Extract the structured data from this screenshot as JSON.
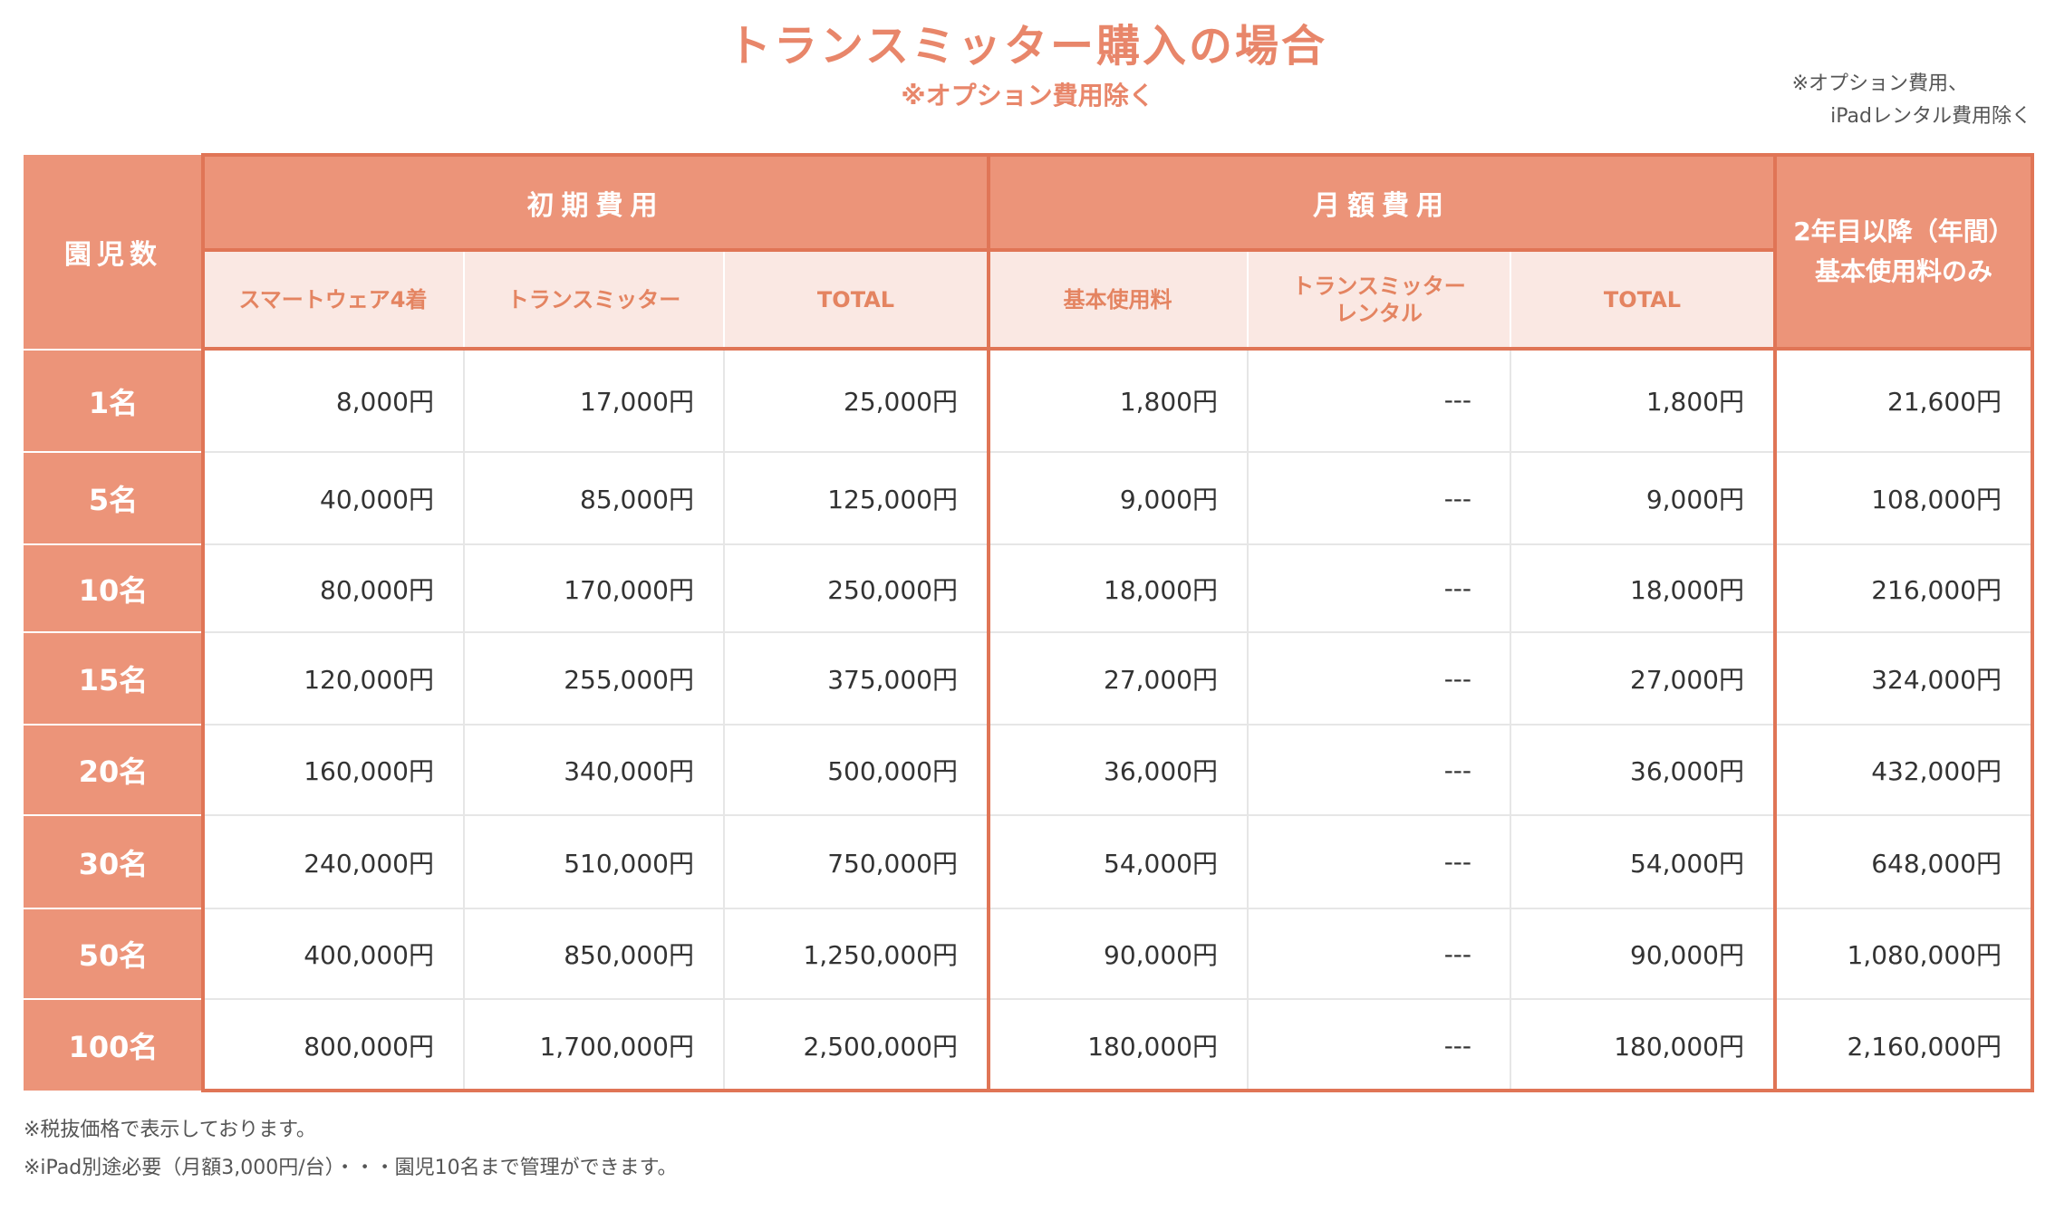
{
  "header": {
    "title": "トランスミッター購入の場合",
    "subtitle": "※オプション費用除く",
    "note": [
      "※オプション費用、",
      "iPadレンタル費用除く"
    ]
  },
  "table": {
    "corner": "園児数",
    "groups": [
      "初期費用",
      "月額費用",
      "2年目以降（年間）基本使用料のみ"
    ],
    "subheaders": [
      [
        "スマートウェア4着"
      ],
      [
        "トランスミッター"
      ],
      [
        "TOTAL"
      ],
      [
        "基本使用料"
      ],
      [
        "トランスミッター",
        "レンタル"
      ],
      [
        "TOTAL"
      ]
    ],
    "rows": [
      {
        "label": "1名",
        "cells": [
          "8,000円",
          "17,000円",
          "25,000円",
          "1,800円",
          "---",
          "1,800円",
          "21,600円"
        ]
      },
      {
        "label": "5名",
        "cells": [
          "40,000円",
          "85,000円",
          "125,000円",
          "9,000円",
          "---",
          "9,000円",
          "108,000円"
        ]
      },
      {
        "label": "10名",
        "cells": [
          "80,000円",
          "170,000円",
          "250,000円",
          "18,000円",
          "---",
          "18,000円",
          "216,000円"
        ]
      },
      {
        "label": "15名",
        "cells": [
          "120,000円",
          "255,000円",
          "375,000円",
          "27,000円",
          "---",
          "27,000円",
          "324,000円"
        ]
      },
      {
        "label": "20名",
        "cells": [
          "160,000円",
          "340,000円",
          "500,000円",
          "36,000円",
          "---",
          "36,000円",
          "432,000円"
        ]
      },
      {
        "label": "30名",
        "cells": [
          "240,000円",
          "510,000円",
          "750,000円",
          "54,000円",
          "---",
          "54,000円",
          "648,000円"
        ]
      },
      {
        "label": "50名",
        "cells": [
          "400,000円",
          "850,000円",
          "1,250,000円",
          "90,000円",
          "---",
          "90,000円",
          "1,080,000円"
        ]
      },
      {
        "label": "100名",
        "cells": [
          "800,000円",
          "1,700,000円",
          "2,500,000円",
          "180,000円",
          "---",
          "180,000円",
          "2,160,000円"
        ]
      }
    ]
  },
  "footnotes": [
    "※税抜価格で表示しております。",
    "※iPad別途必要（月額3,000円/台）・・・園児10名まで管理ができます。"
  ]
}
